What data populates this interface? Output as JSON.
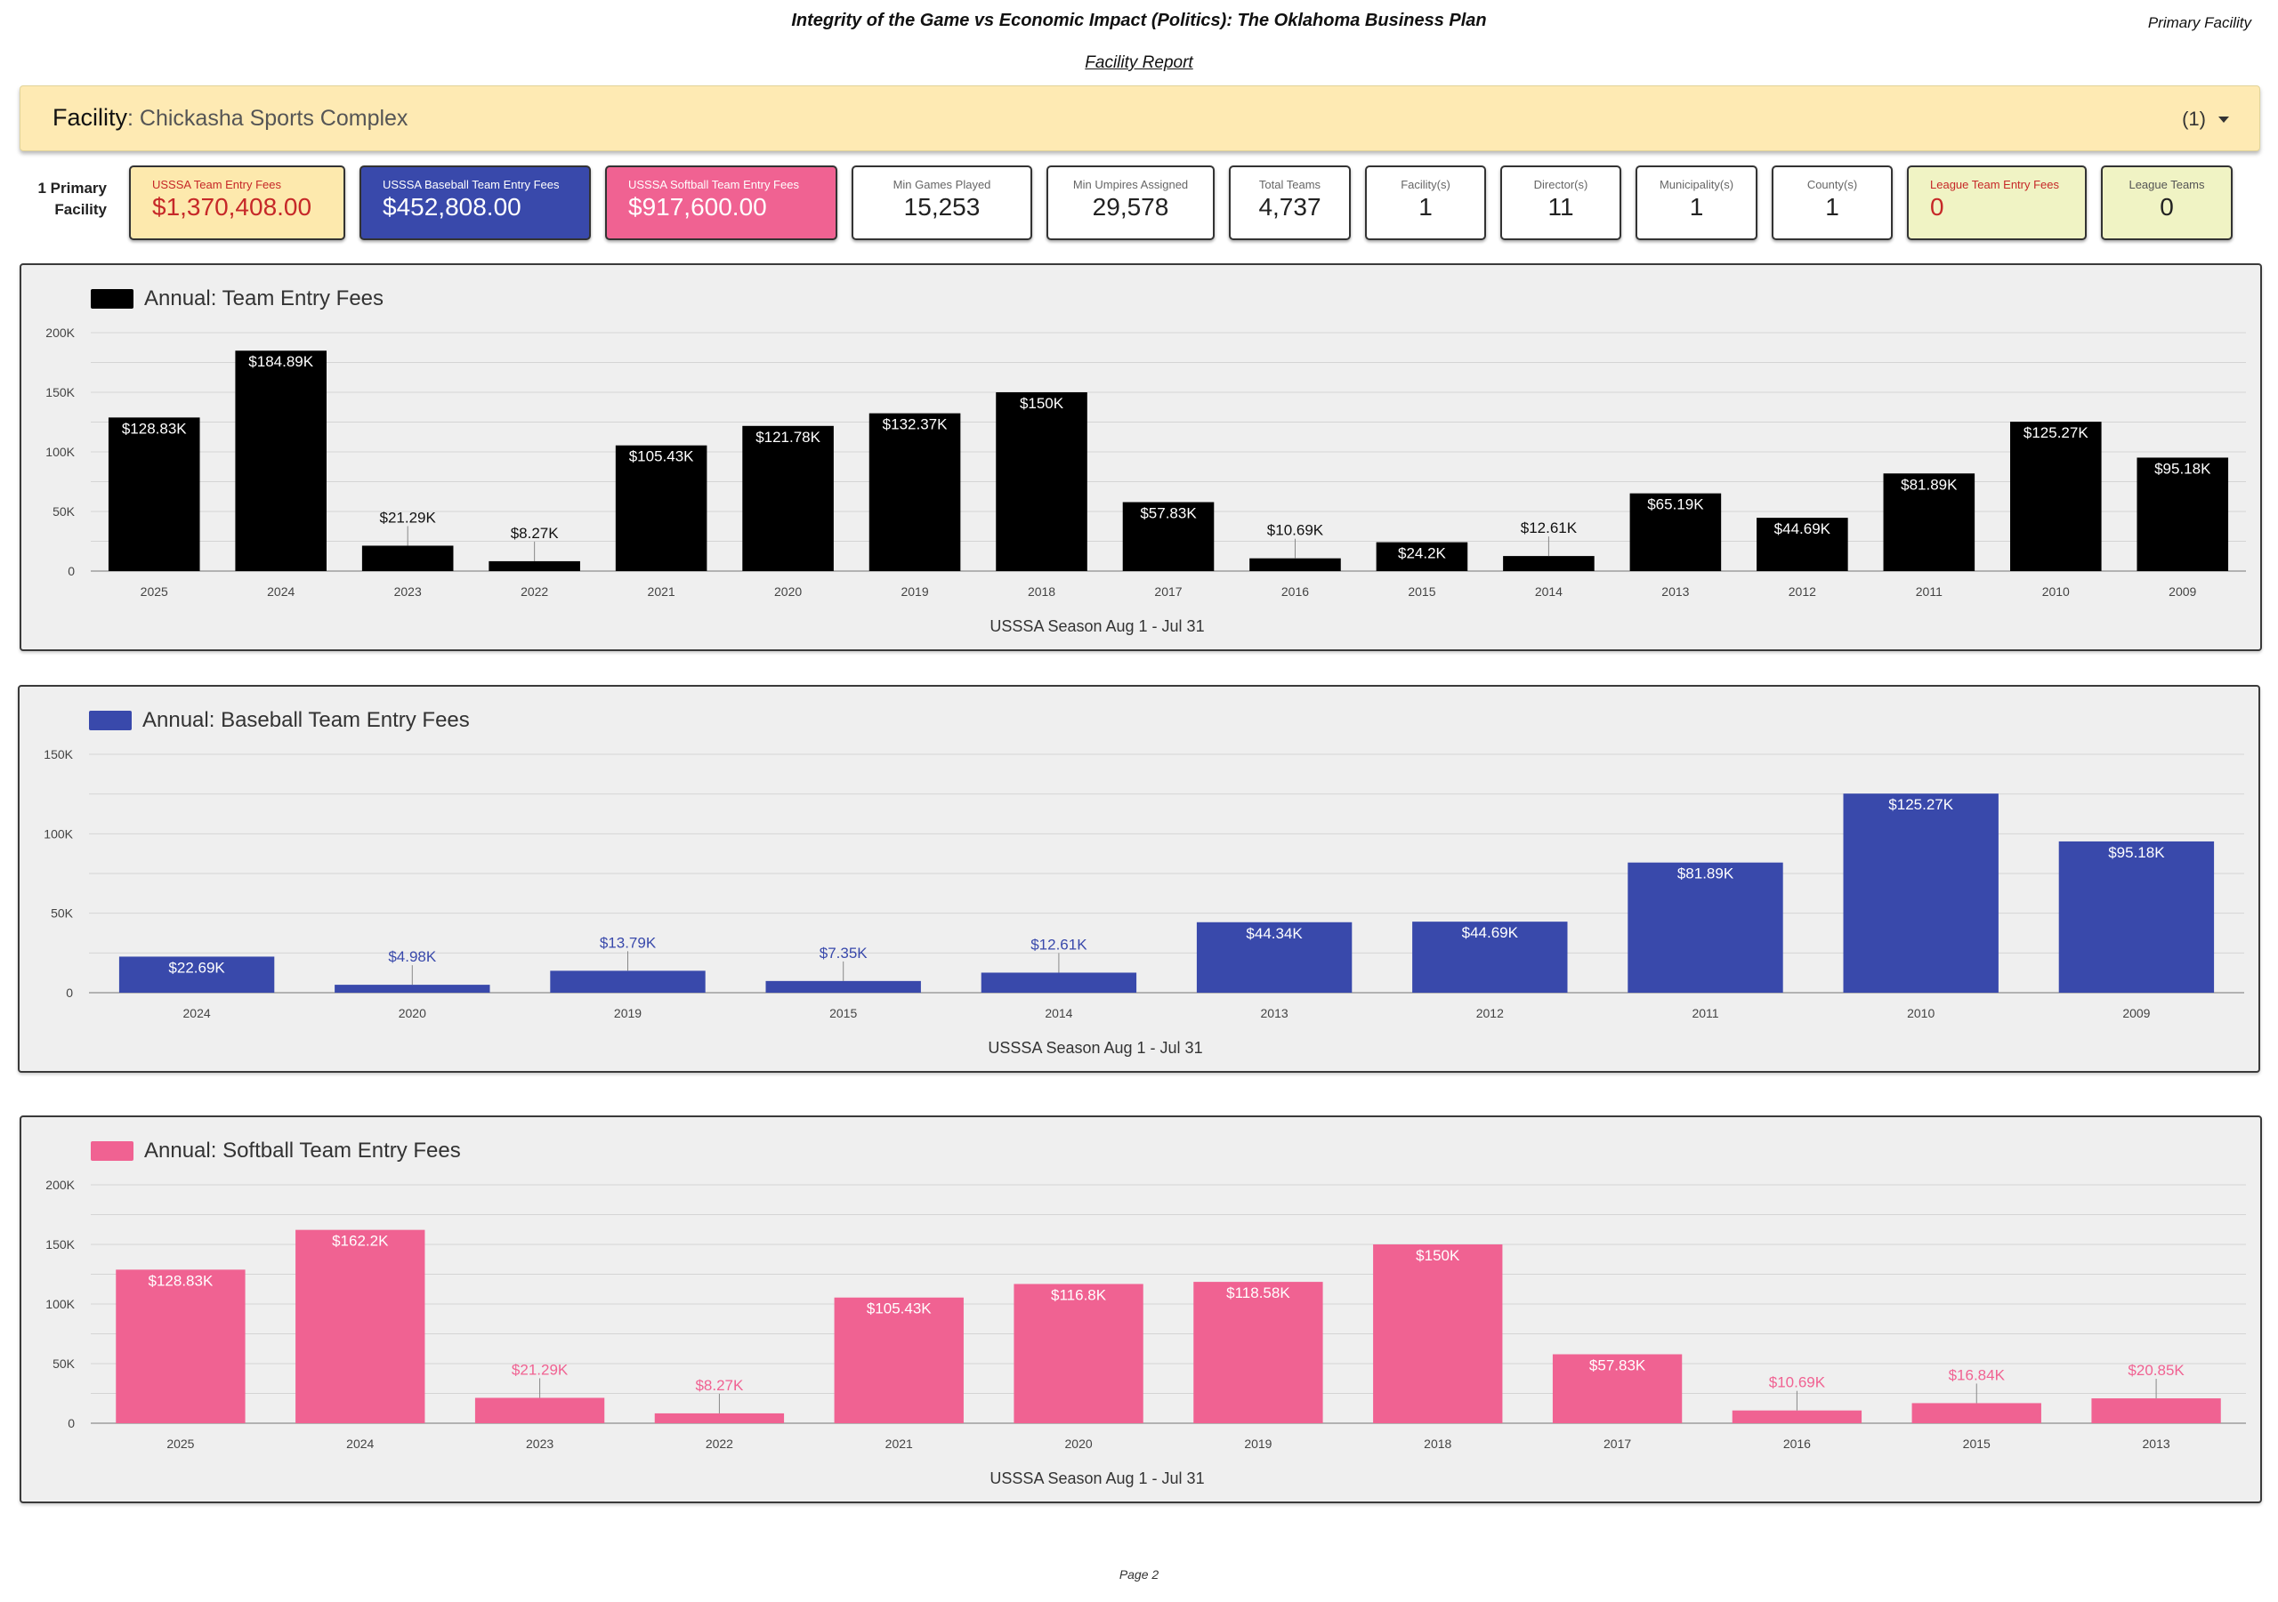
{
  "header": {
    "title": "Integrity of the Game vs Economic Impact (Politics): The Oklahoma Business Plan",
    "corner": "Primary Facility",
    "subtitle": "Facility Report"
  },
  "facility": {
    "label": "Facility",
    "name": "Chickasha Sports Complex",
    "count": "(1)"
  },
  "kpi_caption": "1 Primary Facility",
  "kpis": [
    {
      "title": "USSSA Team Entry Fees",
      "value": "$1,370,408.00"
    },
    {
      "title": "USSSA Baseball Team Entry Fees",
      "value": "$452,808.00"
    },
    {
      "title": "USSSA Softball Team Entry Fees",
      "value": "$917,600.00"
    },
    {
      "title": "Min Games Played",
      "value": "15,253"
    },
    {
      "title": "Min Umpires Assigned",
      "value": "29,578"
    },
    {
      "title": "Total Teams",
      "value": "4,737"
    },
    {
      "title": "Facility(s)",
      "value": "1"
    },
    {
      "title": "Director(s)",
      "value": "11"
    },
    {
      "title": "Municipality(s)",
      "value": "1"
    },
    {
      "title": "County(s)",
      "value": "1"
    },
    {
      "title": "League Team Entry Fees",
      "value": "0"
    },
    {
      "title": "League Teams",
      "value": "0"
    }
  ],
  "colors": {
    "team": "#000000",
    "baseball": "#3949ab",
    "softball": "#f06292",
    "fee_red": "#c62828"
  },
  "chart_data": [
    {
      "type": "bar",
      "title": "Annual: Team Entry Fees",
      "xlabel": "USSSA Season Aug 1 - Jul 31",
      "ylabel": "",
      "ylim": [
        0,
        200000
      ],
      "yticks": [
        0,
        50000,
        100000,
        150000,
        200000
      ],
      "ytick_labels": [
        "0",
        "50K",
        "100K",
        "150K",
        "200K"
      ],
      "categories": [
        "2025",
        "2024",
        "2023",
        "2022",
        "2021",
        "2020",
        "2019",
        "2018",
        "2017",
        "2016",
        "2015",
        "2014",
        "2013",
        "2012",
        "2011",
        "2010",
        "2009"
      ],
      "values": [
        128830,
        184890,
        21290,
        8270,
        105430,
        121780,
        132370,
        150000,
        57830,
        10690,
        24200,
        12610,
        65190,
        44690,
        81890,
        125270,
        95180
      ],
      "labels": [
        "$128.83K",
        "$184.89K",
        "$21.29K",
        "$8.27K",
        "$105.43K",
        "$121.78K",
        "$132.37K",
        "$150K",
        "$57.83K",
        "$10.69K",
        "$24.2K",
        "$12.61K",
        "$65.19K",
        "$44.69K",
        "$81.89K",
        "$125.27K",
        "$95.18K"
      ],
      "grid": true,
      "legend": "top-left",
      "color": "#000000"
    },
    {
      "type": "bar",
      "title": "Annual: Baseball Team Entry Fees",
      "xlabel": "USSSA Season Aug 1 - Jul 31",
      "ylabel": "",
      "ylim": [
        0,
        150000
      ],
      "yticks": [
        0,
        50000,
        100000,
        150000
      ],
      "ytick_labels": [
        "0",
        "50K",
        "100K",
        "150K"
      ],
      "categories": [
        "2024",
        "2020",
        "2019",
        "2015",
        "2014",
        "2013",
        "2012",
        "2011",
        "2010",
        "2009"
      ],
      "values": [
        22690,
        4980,
        13790,
        7350,
        12610,
        44340,
        44690,
        81890,
        125270,
        95180
      ],
      "labels": [
        "$22.69K",
        "$4.98K",
        "$13.79K",
        "$7.35K",
        "$12.61K",
        "$44.34K",
        "$44.69K",
        "$81.89K",
        "$125.27K",
        "$95.18K"
      ],
      "grid": true,
      "legend": "top-left",
      "color": "#3949ab"
    },
    {
      "type": "bar",
      "title": "Annual: Softball Team Entry Fees",
      "xlabel": "USSSA Season Aug 1 - Jul 31",
      "ylabel": "",
      "ylim": [
        0,
        200000
      ],
      "yticks": [
        0,
        50000,
        100000,
        150000,
        200000
      ],
      "ytick_labels": [
        "0",
        "50K",
        "100K",
        "150K",
        "200K"
      ],
      "categories": [
        "2025",
        "2024",
        "2023",
        "2022",
        "2021",
        "2020",
        "2019",
        "2018",
        "2017",
        "2016",
        "2015",
        "2013"
      ],
      "values": [
        128830,
        162200,
        21290,
        8270,
        105430,
        116800,
        118580,
        150000,
        57830,
        10690,
        16840,
        20850
      ],
      "labels": [
        "$128.83K",
        "$162.2K",
        "$21.29K",
        "$8.27K",
        "$105.43K",
        "$116.8K",
        "$118.58K",
        "$150K",
        "$57.83K",
        "$10.69K",
        "$16.84K",
        "$20.85K"
      ],
      "grid": true,
      "legend": "top-left",
      "color": "#f06292"
    }
  ],
  "footer": {
    "page": "Page 2"
  }
}
